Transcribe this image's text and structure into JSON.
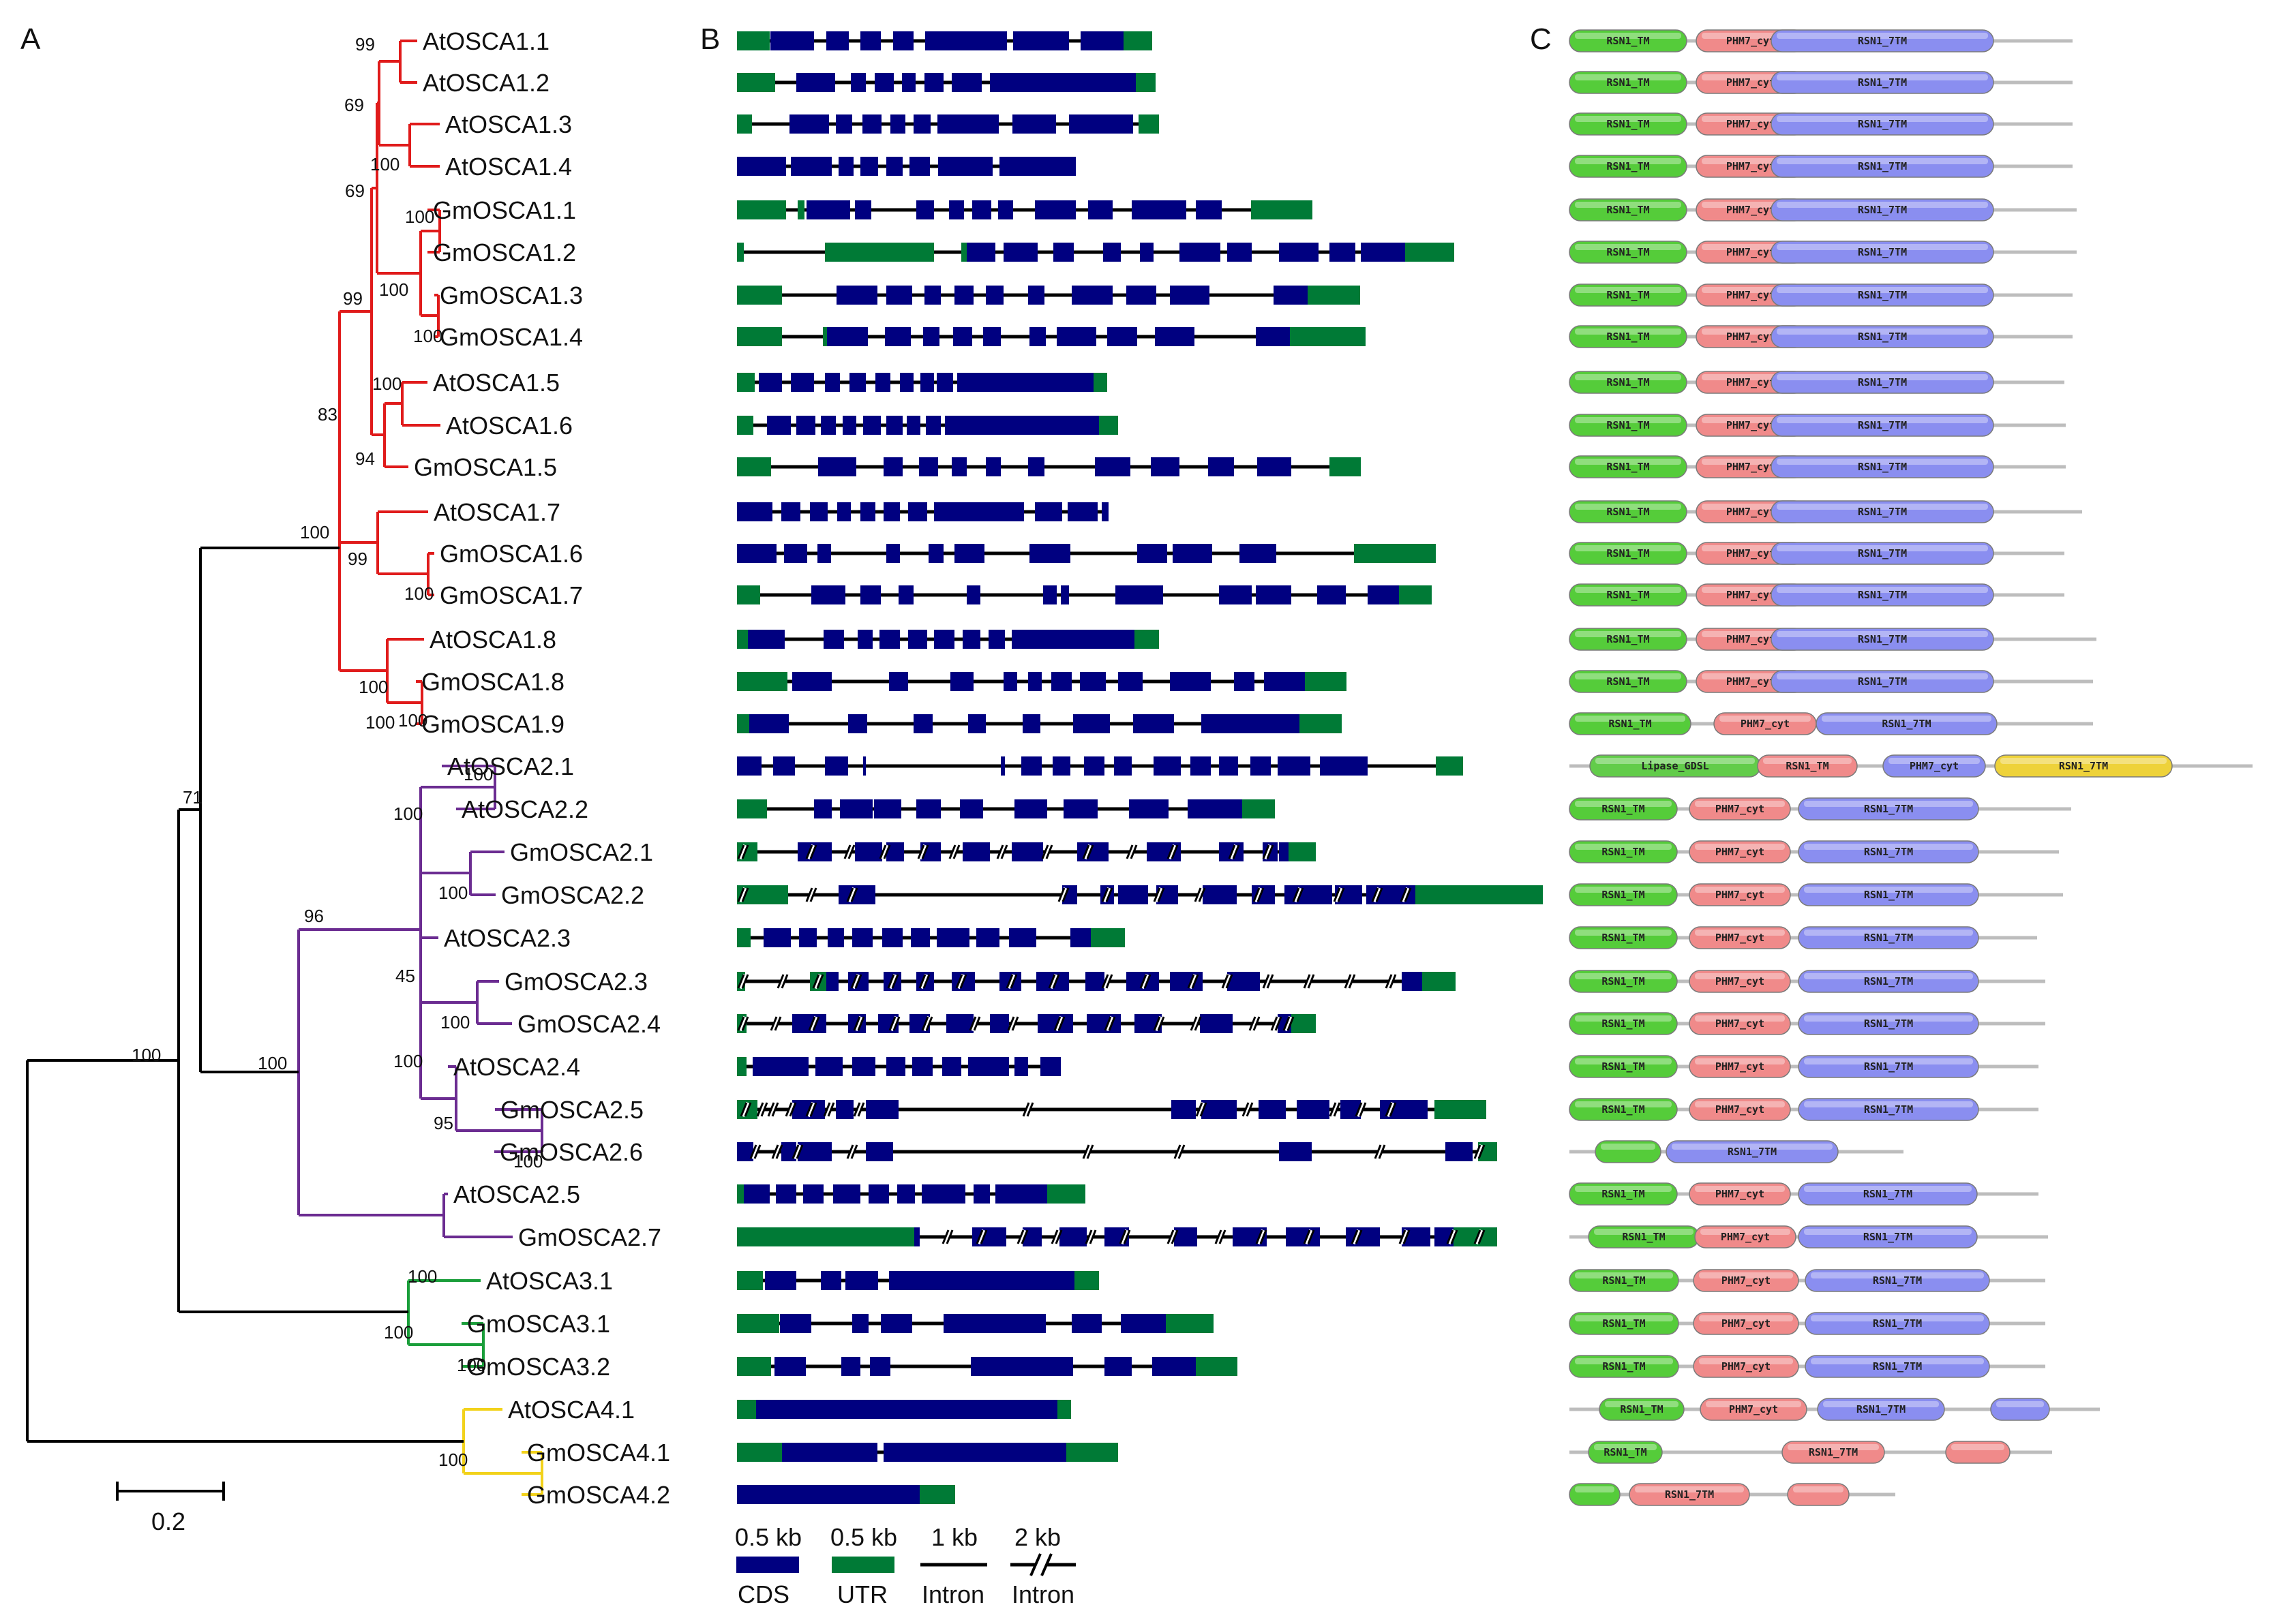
{
  "panels": {
    "a": "A",
    "b": "B",
    "c": "C"
  },
  "colors": {
    "cds": "#000080",
    "utr": "#007a36",
    "intron": "#000000",
    "clade1": "#e01b1b",
    "clade2": "#6b2c91",
    "clade3": "#1a9e3a",
    "clade4": "#f2d21b",
    "tm": "#55cc3a",
    "phm": "#f08a8a",
    "seven": "#8a8ef0",
    "lipase": "#62cc4a",
    "seven_alt": "#eed23a",
    "backbone": "#bdbdbd"
  },
  "genes": [
    "AtOSCA1.1",
    "AtOSCA1.2",
    "AtOSCA1.3",
    "AtOSCA1.4",
    "GmOSCA1.1",
    "GmOSCA1.2",
    "GmOSCA1.3",
    "GmOSCA1.4",
    "AtOSCA1.5",
    "AtOSCA1.6",
    "GmOSCA1.5",
    "AtOSCA1.7",
    "GmOSCA1.6",
    "GmOSCA1.7",
    "AtOSCA1.8",
    "GmOSCA1.8",
    "GmOSCA1.9",
    "AtOSCA2.1",
    "AtOSCA2.2",
    "GmOSCA2.1",
    "GmOSCA2.2",
    "AtOSCA2.3",
    "GmOSCA2.3",
    "GmOSCA2.4",
    "AtOSCA2.4",
    "GmOSCA2.5",
    "GmOSCA2.6",
    "AtOSCA2.5",
    "GmOSCA2.7",
    "AtOSCA3.1",
    "GmOSCA3.1",
    "GmOSCA3.2",
    "AtOSCA4.1",
    "GmOSCA4.1",
    "GmOSCA4.2"
  ],
  "bootstrap": [
    "99",
    "69",
    "100",
    "69",
    "100",
    "100",
    "100",
    "99",
    "100",
    "94",
    "83",
    "100",
    "99",
    "100",
    "100",
    "100",
    "100",
    "100",
    "100",
    "100",
    "96",
    "45",
    "100",
    "100",
    "95",
    "100",
    "100",
    "71",
    "100",
    "100",
    "100",
    "100",
    "100"
  ],
  "scale_bar": "0.2",
  "legend": {
    "cds": {
      "size": "0.5 kb",
      "label": "CDS"
    },
    "utr": {
      "size": "0.5 kb",
      "label": "UTR"
    },
    "intron": {
      "size": "1 kb",
      "label": "Intron"
    },
    "intron_break": {
      "size": "2 kb",
      "label": "Intron"
    }
  },
  "domain_labels": {
    "tm": "RSN1_TM",
    "phm": "PHM7_cyt",
    "seven": "RSN1_7TM",
    "lipase": "Lipase_GDSL"
  }
}
